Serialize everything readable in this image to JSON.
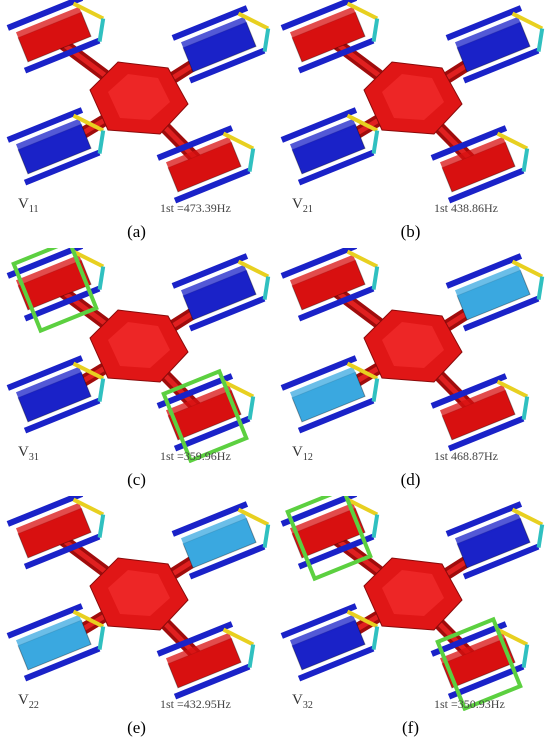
{
  "panels": [
    {
      "mode": {
        "letter": "V",
        "index": "11"
      },
      "frequency": "1st =473.39Hz",
      "caption": "(a)"
    },
    {
      "mode": {
        "letter": "V",
        "index": "21"
      },
      "frequency": "1st 438.86Hz",
      "caption": "(b)"
    },
    {
      "mode": {
        "letter": "V",
        "index": "31"
      },
      "frequency": "1st =359.96Hz",
      "caption": "(c)"
    },
    {
      "mode": {
        "letter": "V",
        "index": "12"
      },
      "frequency": "1st 468.87Hz",
      "caption": "(d)"
    },
    {
      "mode": {
        "letter": "V",
        "index": "22"
      },
      "frequency": "1st =432.95Hz",
      "caption": "(e)"
    },
    {
      "mode": {
        "letter": "V",
        "index": "32"
      },
      "frequency": "1st =350.93Hz",
      "caption": "(f)"
    }
  ]
}
